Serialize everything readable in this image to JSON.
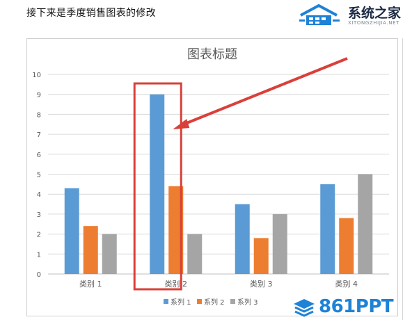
{
  "caption": "接下来是季度销售图表的修改",
  "watermark_top": {
    "name": "系统之家",
    "url": "XITONGZHIJIA.NET",
    "color": "#1b2a44"
  },
  "watermark_bottom": {
    "text": "861PPT",
    "color": "#1e82d6"
  },
  "highlight": {
    "target_category": "类别 2",
    "target_series": "系列 1",
    "box_color": "#d9403a",
    "arrow_color": "#d9403a"
  },
  "chart_data": {
    "type": "bar",
    "title": "图表标题",
    "categories": [
      "类别 1",
      "类别 2",
      "类别 3",
      "类别 4"
    ],
    "series": [
      {
        "name": "系列 1",
        "color": "#5b9bd5",
        "values": [
          4.3,
          9,
          3.5,
          4.5
        ]
      },
      {
        "name": "系列 2",
        "color": "#ed7d31",
        "values": [
          2.4,
          4.4,
          1.8,
          2.8
        ]
      },
      {
        "name": "系列 3",
        "color": "#a5a5a5",
        "values": [
          2,
          2,
          3,
          5
        ]
      }
    ],
    "ylim": [
      0,
      10
    ],
    "yticks": [
      0,
      1,
      2,
      3,
      4,
      5,
      6,
      7,
      8,
      9,
      10
    ],
    "grid": true,
    "legend": "bottom"
  }
}
